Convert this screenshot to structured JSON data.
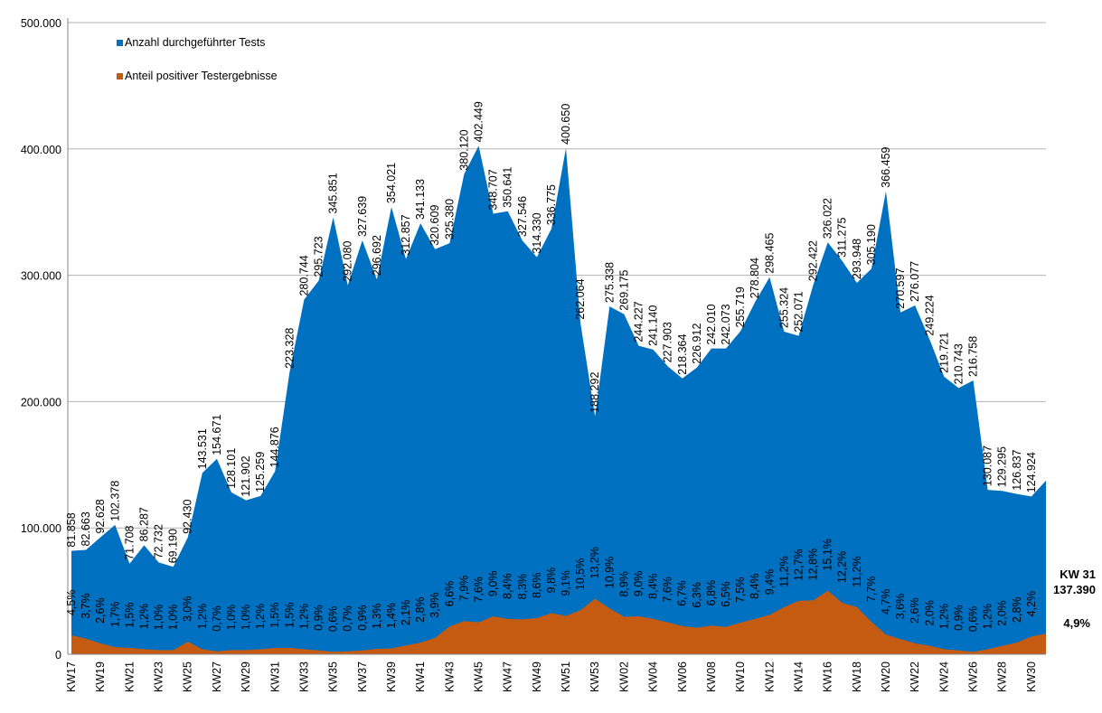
{
  "chart_data": {
    "type": "area",
    "categories": [
      "KW17",
      null,
      "KW19",
      null,
      "KW21",
      null,
      "KW23",
      null,
      "KW25",
      null,
      "KW27",
      null,
      "KW29",
      null,
      "KW31",
      null,
      "KW33",
      null,
      "KW35",
      null,
      "KW37",
      null,
      "KW39",
      null,
      "KW41",
      null,
      "KW43",
      null,
      "KW45",
      null,
      "KW47",
      null,
      "KW49",
      null,
      "KW51",
      null,
      "KW53",
      null,
      "KW02",
      null,
      "KW04",
      null,
      "KW06",
      null,
      "KW08",
      null,
      "KW10",
      null,
      "KW12",
      null,
      "KW14",
      null,
      "KW16",
      null,
      "KW18",
      null,
      "KW20",
      null,
      "KW22",
      null,
      "KW24",
      null,
      "KW26",
      null,
      "KW28",
      null,
      "KW30",
      null
    ],
    "series": [
      {
        "name": "Anzahl durchgeführter Tests",
        "color": "#0070c0",
        "values": [
          81858,
          82663,
          92628,
          102378,
          71708,
          86287,
          72732,
          69190,
          92430,
          143531,
          154671,
          128101,
          121902,
          125259,
          144876,
          223328,
          280744,
          295723,
          345851,
          292080,
          327639,
          296692,
          354021,
          312857,
          341133,
          320609,
          325380,
          380120,
          402449,
          348707,
          350641,
          327546,
          314330,
          336775,
          400650,
          262064,
          188292,
          275338,
          269175,
          244227,
          241140,
          227903,
          218364,
          226912,
          242010,
          242073,
          255719,
          278804,
          298465,
          255324,
          252071,
          292422,
          326022,
          311275,
          293948,
          305190,
          366459,
          270597,
          276077,
          249224,
          219721,
          210743,
          216758,
          130087,
          129295,
          126837,
          124924,
          137390
        ],
        "value_labels": [
          "81.858",
          "82.663",
          "92.628",
          "102.378",
          "71.708",
          "86.287",
          "72.732",
          "69.190",
          "92.430",
          "143.531",
          "154.671",
          "128.101",
          "121.902",
          "125.259",
          "144.876",
          "223.328",
          "280.744",
          "295.723",
          "345.851",
          "292.080",
          "327.639",
          "296.692",
          "354.021",
          "312.857",
          "341.133",
          "320.609",
          "325.380",
          "380.120",
          "402.449",
          "348.707",
          "350.641",
          "327.546",
          "314.330",
          "336.775",
          "400.650",
          "262.064",
          "188.292",
          "275.338",
          "269.175",
          "244.227",
          "241.140",
          "227.903",
          "218.364",
          "226.912",
          "242.010",
          "242.073",
          "255.719",
          "278.804",
          "298.465",
          "255.324",
          "252.071",
          "292.422",
          "326.022",
          "311.275",
          "293.948",
          "305.190",
          "366.459",
          "270.597",
          "276.077",
          "249.224",
          "219.721",
          "210.743",
          "216.758",
          "130.087",
          "129.295",
          "126.837",
          "124.924",
          "137.390"
        ]
      },
      {
        "name": "Anteil positiver Testergebnisse",
        "color": "#c55a11",
        "axis": "y2",
        "values": [
          4.5,
          3.7,
          2.6,
          1.7,
          1.5,
          1.2,
          1.0,
          1.0,
          3.0,
          1.2,
          0.7,
          1.0,
          1.0,
          1.2,
          1.5,
          1.5,
          1.2,
          0.9,
          0.6,
          0.7,
          0.9,
          1.3,
          1.4,
          2.1,
          2.8,
          3.9,
          6.6,
          7.9,
          7.6,
          9.0,
          8.4,
          8.3,
          8.6,
          9.8,
          9.1,
          10.5,
          13.2,
          10.9,
          8.9,
          9.0,
          8.4,
          7.6,
          6.7,
          6.3,
          6.8,
          6.5,
          7.5,
          8.4,
          9.4,
          11.2,
          12.7,
          12.8,
          15.1,
          12.2,
          11.2,
          7.7,
          4.7,
          3.6,
          2.6,
          2.0,
          1.2,
          0.9,
          0.6,
          1.2,
          2.0,
          2.8,
          4.2,
          4.9
        ],
        "value_labels": [
          "4,5%",
          "3,7%",
          "2,6%",
          "1,7%",
          "1,5%",
          "1,2%",
          "1,0%",
          "1,0%",
          "3,0%",
          "1,2%",
          "0,7%",
          "1,0%",
          "1,0%",
          "1,2%",
          "1,5%",
          "1,5%",
          "1,2%",
          "0,9%",
          "0,6%",
          "0,7%",
          "0,9%",
          "1,3%",
          "1,4%",
          "2,1%",
          "2,8%",
          "3,9%",
          "6,6%",
          "7,9%",
          "7,6%",
          "9,0%",
          "8,4%",
          "8,3%",
          "8,6%",
          "9,8%",
          "9,1%",
          "10,5%",
          "13,2%",
          "10,9%",
          "8,9%",
          "9,0%",
          "8,4%",
          "7,6%",
          "6,7%",
          "6,3%",
          "6,8%",
          "6,5%",
          "7,5%",
          "8,4%",
          "9,4%",
          "11,2%",
          "12,7%",
          "12,8%",
          "15,1%",
          "12,2%",
          "11,2%",
          "7,7%",
          "4,7%",
          "3,6%",
          "2,6%",
          "2,0%",
          "1,2%",
          "0,9%",
          "0,6%",
          "1,2%",
          "2,0%",
          "2,8%",
          "4,2%",
          "4,9%"
        ]
      }
    ],
    "annotation": "KW 31",
    "ylim": [
      0,
      500000
    ],
    "yticks": [
      0,
      {
        "value": 100000,
        "label": "100.000"
      },
      {
        "value": 200000,
        "label": "200.000"
      },
      {
        "value": 300000,
        "label": "300.000"
      },
      {
        "value": 400000,
        "label": "400.000"
      },
      {
        "value": 500000,
        "label": "500.000"
      }
    ],
    "y2lim": [
      0,
      150
    ],
    "grid": true
  }
}
